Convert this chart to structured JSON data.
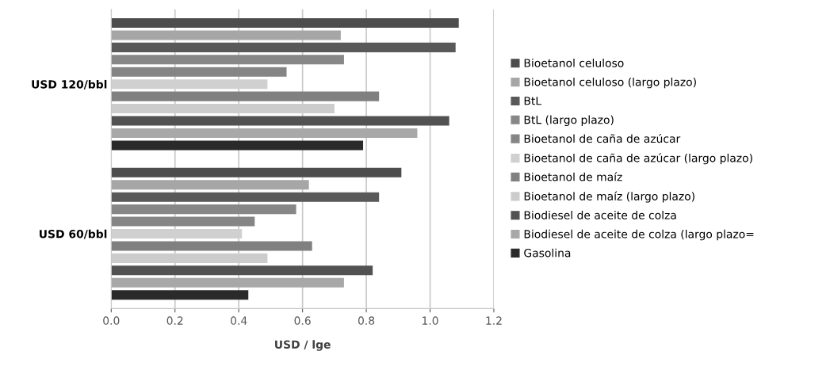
{
  "chart_data": {
    "type": "bar",
    "orientation": "horizontal",
    "xlabel": "USD / lge",
    "categories": [
      "USD 120/bbl",
      "USD 60/bbl"
    ],
    "xlim": [
      0,
      1.2
    ],
    "xticks": [
      {
        "value": 0,
        "label": "0.0"
      },
      {
        "value": 0.2,
        "label": "0.2"
      },
      {
        "value": 0.4,
        "label": "0.4"
      },
      {
        "value": 0.6,
        "label": "0.6"
      },
      {
        "value": 0.8,
        "label": "0.8"
      },
      {
        "value": 1.0,
        "label": "1.0"
      },
      {
        "value": 1.2,
        "label": "1.2"
      }
    ],
    "grid": "x",
    "legend": "right",
    "series": [
      {
        "name": "Bioetanol celuloso",
        "color": "#4d4d4d",
        "values": [
          1.09,
          0.91
        ]
      },
      {
        "name": "Bioetanol celuloso (largo plazo)",
        "color": "#a6a6a6",
        "values": [
          0.72,
          0.62
        ]
      },
      {
        "name": "BtL",
        "color": "#595959",
        "values": [
          1.08,
          0.84
        ]
      },
      {
        "name": "BtL (largo plazo)",
        "color": "#878787",
        "values": [
          0.73,
          0.58
        ]
      },
      {
        "name": "Bioetanol de caña de azúcar",
        "color": "#858585",
        "values": [
          0.55,
          0.45
        ]
      },
      {
        "name": "Bioetanol de caña de azúcar (largo plazo)",
        "color": "#d0d0d0",
        "values": [
          0.49,
          0.41
        ]
      },
      {
        "name": "Bioetanol de maíz",
        "color": "#808080",
        "values": [
          0.84,
          0.63
        ]
      },
      {
        "name": "Bioetanol de maíz (largo plazo)",
        "color": "#cccccc",
        "values": [
          0.7,
          0.49
        ]
      },
      {
        "name": "Biodiesel de aceite de colza",
        "color": "#525252",
        "values": [
          1.06,
          0.82
        ]
      },
      {
        "name": "Biodiesel de aceite de colza (largo plazo=",
        "color": "#a8a8a8",
        "values": [
          0.96,
          0.73
        ]
      },
      {
        "name": "Gasolina",
        "color": "#2a2a2a",
        "values": [
          0.79,
          0.43
        ]
      }
    ]
  }
}
